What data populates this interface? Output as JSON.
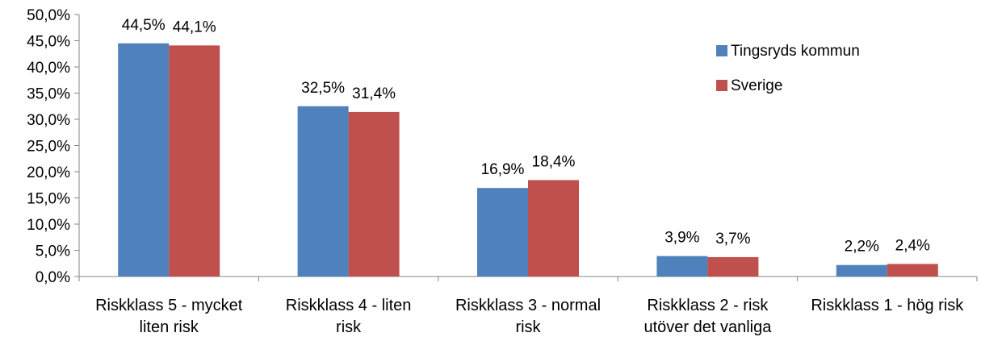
{
  "chart_data": {
    "type": "bar",
    "title": "",
    "xlabel": "",
    "ylabel": "",
    "ylim": [
      0,
      50
    ],
    "ytick_step": 5,
    "y_tick_labels": [
      "0,0%",
      "5,0%",
      "10,0%",
      "15,0%",
      "20,0%",
      "25,0%",
      "30,0%",
      "35,0%",
      "40,0%",
      "45,0%",
      "50,0%"
    ],
    "grid": false,
    "legend_position": "top-right",
    "categories": [
      [
        "Riskklass 5 - mycket",
        "liten risk"
      ],
      [
        "Riskklass 4 - liten",
        "risk"
      ],
      [
        "Riskklass 3 - normal",
        "risk"
      ],
      [
        "Riskklass 2 - risk",
        "utöver det vanliga"
      ],
      [
        "Riskklass 1 - hög risk"
      ]
    ],
    "series": [
      {
        "name": "Tingsryds kommun",
        "color": "#4F81BD",
        "values": [
          44.5,
          32.5,
          16.9,
          3.9,
          2.2
        ],
        "labels": [
          "44,5%",
          "32,5%",
          "16,9%",
          "3,9%",
          "2,2%"
        ]
      },
      {
        "name": "Sverige",
        "color": "#C0504D",
        "values": [
          44.1,
          31.4,
          18.4,
          3.7,
          2.4
        ],
        "labels": [
          "44,1%",
          "31,4%",
          "18,4%",
          "3,7%",
          "2,4%"
        ]
      }
    ]
  }
}
